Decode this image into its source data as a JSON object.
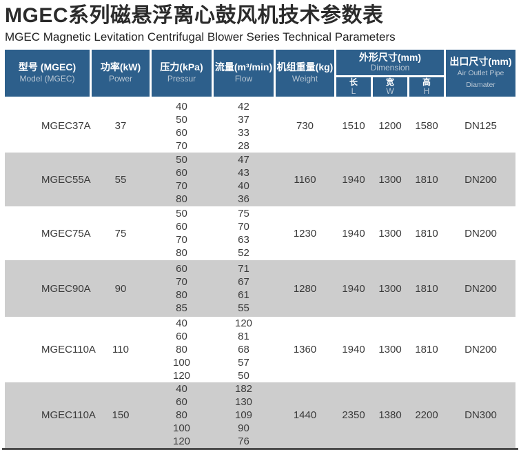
{
  "title": {
    "zh": "MGEC系列磁悬浮离心鼓风机技术参数表",
    "en": "MGEC Magnetic Levitation Centrifugal Blower Series Technical Parameters"
  },
  "table": {
    "headers": {
      "model": {
        "zh": "型号 (MGEC)",
        "en": "Model (MGEC)"
      },
      "power": {
        "zh": "功率(kW)",
        "en": "Power"
      },
      "pressure": {
        "zh": "压力(kPa)",
        "en": "Pressur"
      },
      "flow": {
        "zh": "流量(m³/min)",
        "en": "Flow"
      },
      "weight": {
        "zh": "机组重量(kg)",
        "en": "Weight"
      },
      "dimension": {
        "zh": "外形尺寸(mm)",
        "en": "Dimension",
        "sub": [
          {
            "zh": "长",
            "en": "L"
          },
          {
            "zh": "宽",
            "en": "W"
          },
          {
            "zh": "高",
            "en": "H"
          }
        ]
      },
      "outlet": {
        "zh": "出口尺寸(mm)",
        "en": "Air Outlet Pipe Diamater"
      }
    },
    "rows": [
      {
        "model": "MGEC37A",
        "power": "37",
        "pressure": [
          "40",
          "50",
          "60",
          "70"
        ],
        "flow": [
          "42",
          "37",
          "33",
          "28"
        ],
        "weight": "730",
        "length": "1510",
        "width": "1200",
        "height": "1580",
        "outlet": "DN125"
      },
      {
        "model": "MGEC55A",
        "power": "55",
        "pressure": [
          "50",
          "60",
          "70",
          "80"
        ],
        "flow": [
          "47",
          "43",
          "40",
          "36"
        ],
        "weight": "1160",
        "length": "1940",
        "width": "1300",
        "height": "1810",
        "outlet": "DN200"
      },
      {
        "model": "MGEC75A",
        "power": "75",
        "pressure": [
          "50",
          "60",
          "70",
          "80"
        ],
        "flow": [
          "75",
          "70",
          "63",
          "52"
        ],
        "weight": "1230",
        "length": "1940",
        "width": "1300",
        "height": "1810",
        "outlet": "DN200"
      },
      {
        "model": "MGEC90A",
        "power": "90",
        "pressure": [
          "60",
          "70",
          "80",
          "85"
        ],
        "flow": [
          "71",
          "67",
          "61",
          "55"
        ],
        "weight": "1280",
        "length": "1940",
        "width": "1300",
        "height": "1810",
        "outlet": "DN200"
      },
      {
        "model": "MGEC110A",
        "power": "110",
        "pressure": [
          "40",
          "60",
          "80",
          "100",
          "120"
        ],
        "flow": [
          "120",
          "81",
          "68",
          "57",
          "50"
        ],
        "weight": "1360",
        "length": "1940",
        "width": "1300",
        "height": "1810",
        "outlet": "DN200"
      },
      {
        "model": "MGEC110A",
        "power": "150",
        "pressure": [
          "40",
          "60",
          "80",
          "100",
          "120"
        ],
        "flow": [
          "182",
          "130",
          "109",
          "90",
          "76"
        ],
        "weight": "1440",
        "length": "2350",
        "width": "1380",
        "height": "2200",
        "outlet": "DN300"
      }
    ]
  },
  "colors": {
    "header_bg": "#2d5f8b",
    "header_en_text": "#b9c7d4",
    "stripe": "#cdcdcd",
    "body_text": "#3a3a3a",
    "bottom_line": "#4a4a4a"
  }
}
